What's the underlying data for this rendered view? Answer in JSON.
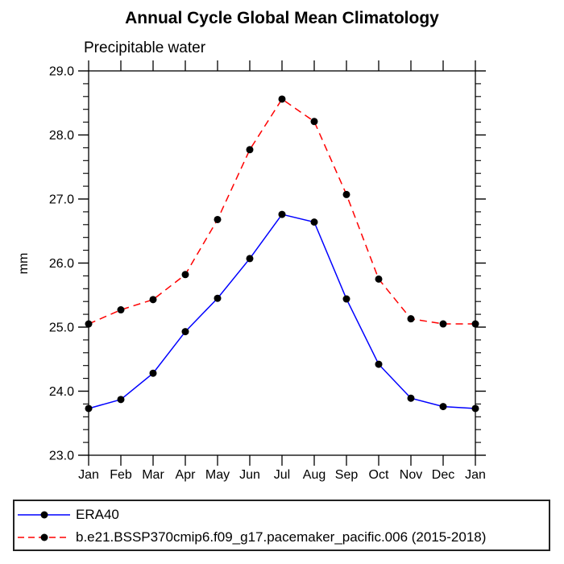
{
  "page": {
    "background": "#ffffff"
  },
  "chart_data": {
    "type": "line",
    "title": "Annual Cycle Global Mean Climatology",
    "subtitle": "Precipitable water",
    "xlabel": "",
    "ylabel": "mm",
    "categories": [
      "Jan",
      "Feb",
      "Mar",
      "Apr",
      "May",
      "Jun",
      "Jul",
      "Aug",
      "Sep",
      "Oct",
      "Nov",
      "Dec",
      "Jan"
    ],
    "ylim": [
      23.0,
      29.0
    ],
    "y_major_step": 1.0,
    "y_minor_step": 0.2,
    "y_tick_labels": [
      "23.0",
      "24.0",
      "25.0",
      "26.0",
      "27.0",
      "28.0",
      "29.0"
    ],
    "grid": false,
    "legend_position": "bottom-box",
    "axis_color": "#000000",
    "marker_color": "#000000",
    "series": [
      {
        "name": "ERA40",
        "color": "#0000ff",
        "style": "solid",
        "values": [
          23.73,
          23.87,
          24.28,
          24.93,
          25.45,
          26.07,
          26.76,
          26.64,
          25.44,
          24.42,
          23.89,
          23.76,
          23.73
        ]
      },
      {
        "name": "b.e21.BSSP370cmip6.f09_g17.pacemaker_pacific.006 (2015-2018)",
        "color": "#ff0000",
        "style": "dashed",
        "values": [
          25.05,
          25.27,
          25.43,
          25.82,
          26.68,
          27.77,
          28.56,
          28.21,
          27.07,
          25.75,
          25.13,
          25.05,
          25.05
        ]
      }
    ]
  }
}
